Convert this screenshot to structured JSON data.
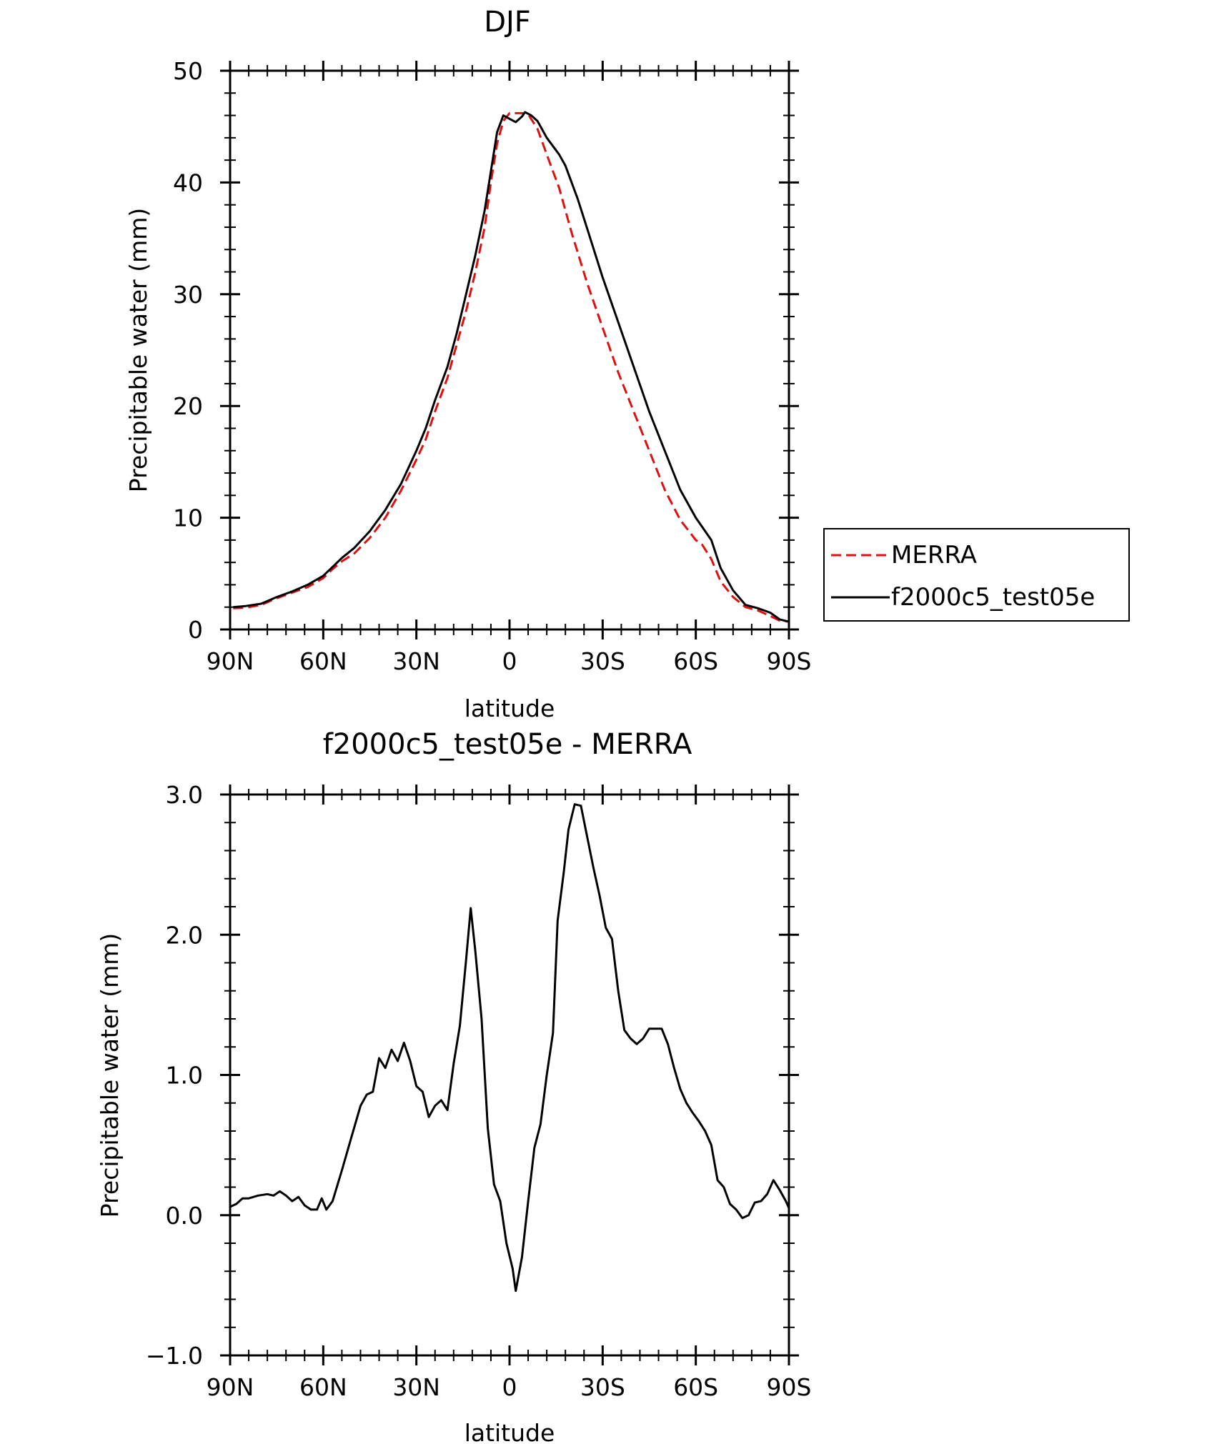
{
  "chart_data": [
    {
      "type": "line",
      "title": "DJF",
      "xlabel": "latitude",
      "ylabel": "Precipitable water (mm)",
      "xlim": [
        -90,
        90
      ],
      "ylim": [
        0,
        50
      ],
      "x_ticks": [
        {
          "value": -90,
          "label": "90N"
        },
        {
          "value": -60,
          "label": "60N"
        },
        {
          "value": -30,
          "label": "30N"
        },
        {
          "value": 0,
          "label": "0"
        },
        {
          "value": 30,
          "label": "30S"
        },
        {
          "value": 60,
          "label": "60S"
        },
        {
          "value": 90,
          "label": "90S"
        }
      ],
      "y_ticks": [
        {
          "value": 0,
          "label": "0"
        },
        {
          "value": 10,
          "label": "10"
        },
        {
          "value": 20,
          "label": "20"
        },
        {
          "value": 30,
          "label": "30"
        },
        {
          "value": 40,
          "label": "40"
        },
        {
          "value": 50,
          "label": "50"
        }
      ],
      "legend": {
        "placement": "right",
        "entries": [
          "MERRA",
          "f2000c5_test05e"
        ]
      },
      "series": [
        {
          "name": "MERRA",
          "color": "#e01010",
          "dash": "dashed",
          "points": [
            [
              -89,
              1.9
            ],
            [
              -85,
              1.95
            ],
            [
              -80,
              2.2
            ],
            [
              -75,
              2.8
            ],
            [
              -70,
              3.3
            ],
            [
              -65,
              3.8
            ],
            [
              -60,
              4.6
            ],
            [
              -57,
              5.4
            ],
            [
              -54,
              6.1
            ],
            [
              -50,
              6.8
            ],
            [
              -45,
              8.2
            ],
            [
              -40,
              10.0
            ],
            [
              -35,
              12.4
            ],
            [
              -30,
              15.2
            ],
            [
              -27,
              17.0
            ],
            [
              -24,
              19.5
            ],
            [
              -20,
              22.5
            ],
            [
              -17,
              25.5
            ],
            [
              -14,
              28.5
            ],
            [
              -11,
              32.0
            ],
            [
              -8,
              36.0
            ],
            [
              -6,
              40.0
            ],
            [
              -4,
              43.5
            ],
            [
              -2,
              45.5
            ],
            [
              0,
              46.2
            ],
            [
              4,
              46.2
            ],
            [
              6,
              46.1
            ],
            [
              9,
              44.8
            ],
            [
              12,
              42.5
            ],
            [
              16,
              39.5
            ],
            [
              20,
              35.5
            ],
            [
              25,
              31.0
            ],
            [
              30,
              27.0
            ],
            [
              35,
              23.0
            ],
            [
              40,
              19.5
            ],
            [
              45,
              16.0
            ],
            [
              50,
              12.5
            ],
            [
              55,
              9.8
            ],
            [
              60,
              8.0
            ],
            [
              62,
              7.6
            ],
            [
              65,
              6.3
            ],
            [
              68,
              4.3
            ],
            [
              72,
              2.9
            ],
            [
              76,
              2.0
            ],
            [
              80,
              1.7
            ],
            [
              84,
              1.2
            ],
            [
              87,
              0.8
            ],
            [
              90,
              0.7
            ]
          ]
        },
        {
          "name": "f2000c5_test05e",
          "color": "#000000",
          "dash": "solid",
          "points": [
            [
              -89,
              2.0
            ],
            [
              -85,
              2.1
            ],
            [
              -80,
              2.3
            ],
            [
              -75,
              2.9
            ],
            [
              -70,
              3.4
            ],
            [
              -65,
              4.0
            ],
            [
              -60,
              4.8
            ],
            [
              -57,
              5.6
            ],
            [
              -54,
              6.4
            ],
            [
              -50,
              7.3
            ],
            [
              -45,
              8.8
            ],
            [
              -40,
              10.7
            ],
            [
              -35,
              13.0
            ],
            [
              -30,
              16.0
            ],
            [
              -27,
              18.0
            ],
            [
              -24,
              20.5
            ],
            [
              -20,
              23.5
            ],
            [
              -17,
              26.5
            ],
            [
              -14,
              30.0
            ],
            [
              -11,
              33.5
            ],
            [
              -8,
              37.5
            ],
            [
              -6,
              41.0
            ],
            [
              -4,
              44.5
            ],
            [
              -2,
              46.0
            ],
            [
              0,
              45.7
            ],
            [
              2,
              45.4
            ],
            [
              4,
              45.9
            ],
            [
              5,
              46.3
            ],
            [
              7,
              46.0
            ],
            [
              9,
              45.5
            ],
            [
              12,
              44.0
            ],
            [
              16,
              42.5
            ],
            [
              18,
              41.5
            ],
            [
              22,
              38.5
            ],
            [
              26,
              35.0
            ],
            [
              30,
              31.5
            ],
            [
              35,
              27.5
            ],
            [
              40,
              23.5
            ],
            [
              45,
              19.5
            ],
            [
              50,
              16.0
            ],
            [
              55,
              12.5
            ],
            [
              60,
              10.0
            ],
            [
              65,
              8.0
            ],
            [
              68,
              5.5
            ],
            [
              72,
              3.5
            ],
            [
              76,
              2.2
            ],
            [
              80,
              1.9
            ],
            [
              84,
              1.5
            ],
            [
              87,
              0.9
            ],
            [
              90,
              0.7
            ]
          ]
        }
      ]
    },
    {
      "type": "line",
      "title": "f2000c5_test05e - MERRA",
      "xlabel": "latitude",
      "ylabel": "Precipitable water (mm)",
      "xlim": [
        -90,
        90
      ],
      "ylim": [
        -1.0,
        3.0
      ],
      "x_ticks": [
        {
          "value": -90,
          "label": "90N"
        },
        {
          "value": -60,
          "label": "60N"
        },
        {
          "value": -30,
          "label": "30N"
        },
        {
          "value": 0,
          "label": "0"
        },
        {
          "value": 30,
          "label": "30S"
        },
        {
          "value": 60,
          "label": "60S"
        },
        {
          "value": 90,
          "label": "90S"
        }
      ],
      "y_ticks": [
        {
          "value": -1.0,
          "label": "-1.0"
        },
        {
          "value": 0.0,
          "label": "0.0"
        },
        {
          "value": 1.0,
          "label": "1.0"
        },
        {
          "value": 2.0,
          "label": "2.0"
        },
        {
          "value": 3.0,
          "label": "3.0"
        }
      ],
      "series": [
        {
          "name": "f2000c5_test05e - MERRA",
          "color": "#000000",
          "dash": "solid",
          "points": [
            [
              -90,
              0.06
            ],
            [
              -88,
              0.08
            ],
            [
              -86,
              0.12
            ],
            [
              -84,
              0.12
            ],
            [
              -81,
              0.14
            ],
            [
              -78,
              0.15
            ],
            [
              -76,
              0.14
            ],
            [
              -74,
              0.17
            ],
            [
              -72,
              0.14
            ],
            [
              -70,
              0.1
            ],
            [
              -68,
              0.13
            ],
            [
              -66,
              0.07
            ],
            [
              -64,
              0.04
            ],
            [
              -62,
              0.04
            ],
            [
              -60.5,
              0.12
            ],
            [
              -59,
              0.04
            ],
            [
              -57,
              0.1
            ],
            [
              -54,
              0.32
            ],
            [
              -51,
              0.55
            ],
            [
              -48,
              0.78
            ],
            [
              -46,
              0.86
            ],
            [
              -44,
              0.88
            ],
            [
              -42,
              1.12
            ],
            [
              -40,
              1.05
            ],
            [
              -38,
              1.18
            ],
            [
              -36,
              1.1
            ],
            [
              -34,
              1.23
            ],
            [
              -32,
              1.1
            ],
            [
              -30,
              0.92
            ],
            [
              -28,
              0.88
            ],
            [
              -26,
              0.7
            ],
            [
              -24,
              0.78
            ],
            [
              -22,
              0.82
            ],
            [
              -20,
              0.75
            ],
            [
              -18,
              1.08
            ],
            [
              -16,
              1.35
            ],
            [
              -14,
              1.82
            ],
            [
              -12.5,
              2.19
            ],
            [
              -11,
              1.88
            ],
            [
              -9,
              1.4
            ],
            [
              -7,
              0.62
            ],
            [
              -5,
              0.22
            ],
            [
              -3,
              0.1
            ],
            [
              -1,
              -0.2
            ],
            [
              1,
              -0.38
            ],
            [
              2,
              -0.54
            ],
            [
              4,
              -0.3
            ],
            [
              6,
              0.1
            ],
            [
              8,
              0.48
            ],
            [
              10,
              0.65
            ],
            [
              12,
              1.0
            ],
            [
              14,
              1.3
            ],
            [
              15.5,
              2.1
            ],
            [
              17.5,
              2.45
            ],
            [
              19,
              2.75
            ],
            [
              21,
              2.93
            ],
            [
              23,
              2.92
            ],
            [
              25,
              2.7
            ],
            [
              27,
              2.48
            ],
            [
              29,
              2.28
            ],
            [
              31,
              2.05
            ],
            [
              33,
              1.97
            ],
            [
              35,
              1.6
            ],
            [
              37,
              1.32
            ],
            [
              39,
              1.26
            ],
            [
              41,
              1.22
            ],
            [
              43,
              1.26
            ],
            [
              45,
              1.33
            ],
            [
              47,
              1.33
            ],
            [
              49,
              1.33
            ],
            [
              51,
              1.22
            ],
            [
              53,
              1.05
            ],
            [
              55,
              0.9
            ],
            [
              57,
              0.8
            ],
            [
              59,
              0.73
            ],
            [
              61,
              0.67
            ],
            [
              63,
              0.6
            ],
            [
              65,
              0.5
            ],
            [
              67,
              0.25
            ],
            [
              69,
              0.2
            ],
            [
              71,
              0.08
            ],
            [
              73,
              0.04
            ],
            [
              75,
              -0.02
            ],
            [
              77,
              0.0
            ],
            [
              79,
              0.09
            ],
            [
              81,
              0.1
            ],
            [
              83,
              0.15
            ],
            [
              85,
              0.25
            ],
            [
              87,
              0.18
            ],
            [
              89,
              0.1
            ],
            [
              90,
              0.05
            ]
          ]
        }
      ]
    }
  ]
}
